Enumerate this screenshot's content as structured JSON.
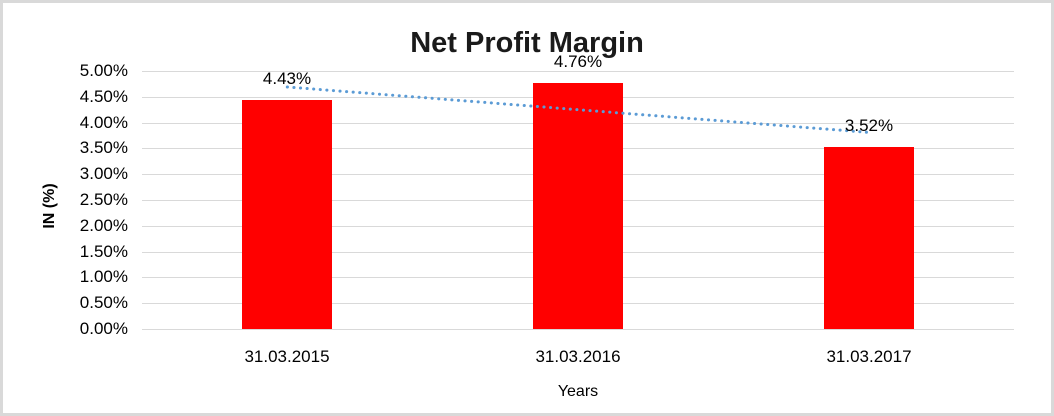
{
  "frame": {
    "background_color": "#ffffff",
    "border_color": "#d9d9d9"
  },
  "chart_data": {
    "type": "bar",
    "title": "Net Profit Margin",
    "xlabel": "Years",
    "ylabel": "IN (%)",
    "categories": [
      "31.03.2015",
      "31.03.2016",
      "31.03.2017"
    ],
    "values": [
      4.43,
      4.76,
      3.52
    ],
    "data_labels": [
      "4.43%",
      "4.76%",
      "3.52%"
    ],
    "y_ticks": [
      "5.00%",
      "4.50%",
      "4.00%",
      "3.50%",
      "3.00%",
      "2.50%",
      "2.00%",
      "1.50%",
      "1.00%",
      "0.50%",
      "0.00%"
    ],
    "ylim": [
      0,
      5
    ],
    "y_step": 0.5,
    "grid": true,
    "legend": "none",
    "bar_color": "#ff0000",
    "gridline_color": "#d9d9d9",
    "text_color": "#000000",
    "title_color": "#1a1a1a",
    "trendline": {
      "type": "linear",
      "style": "dotted",
      "color": "#5b9bd5",
      "start_value": 4.69,
      "end_value": 3.81
    }
  }
}
